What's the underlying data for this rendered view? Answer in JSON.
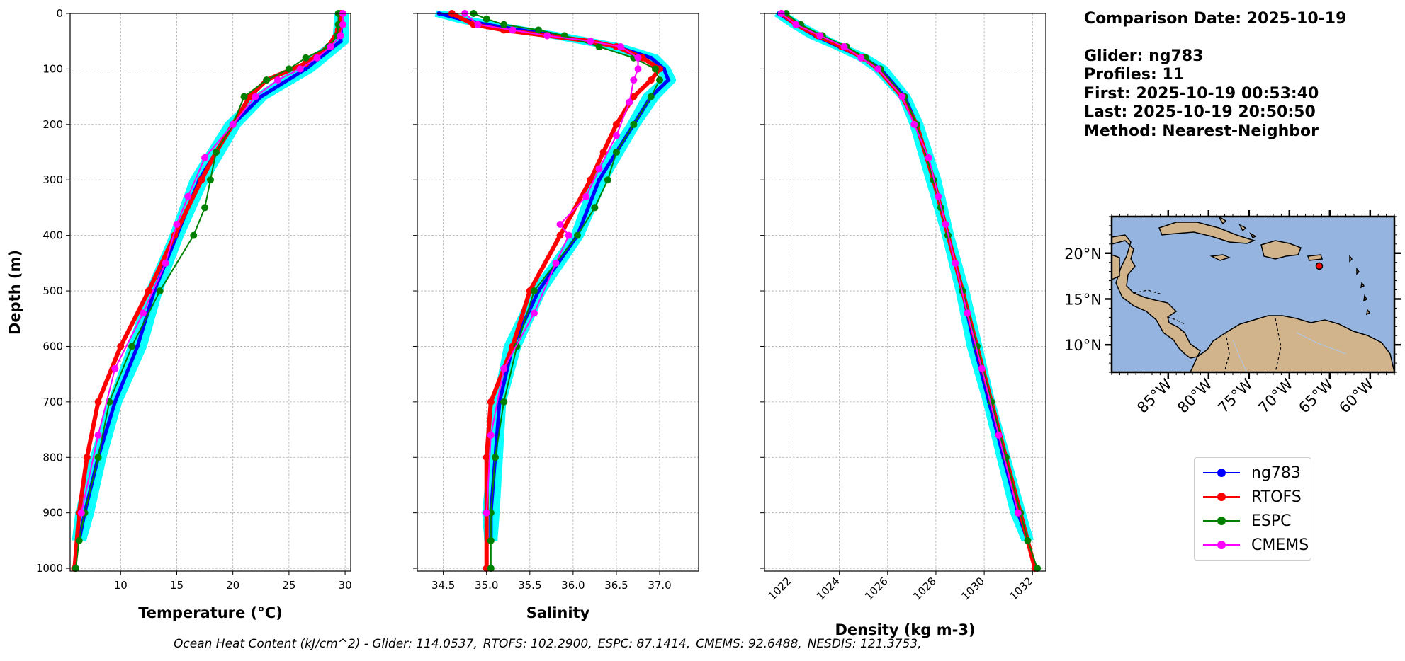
{
  "info": {
    "comparison_date": "Comparison Date: 2025-10-19",
    "glider": "Glider: ng783",
    "profiles": "Profiles: 11",
    "first": "First: 2025-10-19 00:53:40",
    "last": "Last: 2025-10-19 20:50:50",
    "method": "Method: Nearest-Neighbor"
  },
  "footer": {
    "prefix": "Ocean Heat Content (kJ/cm^2) - ",
    "items": [
      "Glider: 114.0537,",
      "RTOFS: 102.2900,",
      "ESPC: 87.1414,",
      "CMEMS: 92.6488,",
      "NESDIS: 121.3753,"
    ]
  },
  "colors": {
    "ng783": "#0000ff",
    "RTOFS": "#ff0000",
    "ESPC": "#008000",
    "CMEMS": "#ff00ff",
    "raw": "#00ffff",
    "land": "#d2b48c",
    "ocean": "#95b5e0"
  },
  "legend": [
    {
      "name": "ng783",
      "color": "#0000ff"
    },
    {
      "name": "RTOFS",
      "color": "#ff0000"
    },
    {
      "name": "ESPC",
      "color": "#008000"
    },
    {
      "name": "CMEMS",
      "color": "#ff00ff"
    }
  ],
  "chart_data": [
    {
      "type": "line",
      "xlabel": "Temperature (°C)",
      "ylabel": "Depth (m)",
      "xlim": [
        5.5,
        30.5
      ],
      "ylim": [
        1005,
        0
      ],
      "xticks": [
        10,
        15,
        20,
        25,
        30
      ],
      "yticks": [
        0,
        100,
        200,
        300,
        400,
        500,
        600,
        700,
        800,
        900,
        1000
      ],
      "grid": true,
      "series": [
        {
          "name": "ng783",
          "depth": [
            0,
            50,
            100,
            150,
            200,
            300,
            400,
            500,
            600,
            700,
            800,
            900,
            950
          ],
          "values": [
            29.7,
            29.6,
            26.5,
            22.5,
            20.0,
            17.0,
            15.0,
            13.0,
            11.5,
            9.5,
            8.0,
            6.8,
            6.3
          ]
        },
        {
          "name": "RTOFS",
          "depth": [
            0,
            30,
            60,
            90,
            120,
            150,
            200,
            250,
            300,
            400,
            500,
            600,
            700,
            800,
            900,
            1000
          ],
          "values": [
            29.6,
            29.4,
            28.5,
            26.5,
            23.0,
            21.5,
            20.0,
            18.5,
            17.2,
            14.8,
            12.5,
            10.0,
            8.0,
            7.0,
            6.3,
            5.9
          ]
        },
        {
          "name": "ESPC",
          "depth": [
            0,
            20,
            40,
            60,
            80,
            100,
            120,
            150,
            200,
            250,
            300,
            350,
            400,
            500,
            600,
            700,
            800,
            900,
            950,
            1000
          ],
          "values": [
            29.4,
            29.4,
            29.3,
            28.5,
            26.5,
            25.0,
            23.0,
            21.0,
            20.0,
            18.5,
            18.0,
            17.5,
            16.5,
            13.5,
            11.0,
            9.0,
            8.0,
            6.8,
            6.3,
            6.0
          ]
        },
        {
          "name": "CMEMS",
          "depth": [
            0,
            20,
            40,
            60,
            80,
            100,
            120,
            150,
            200,
            260,
            330,
            380,
            450,
            540,
            640,
            760,
            900
          ],
          "values": [
            29.8,
            29.8,
            29.6,
            28.7,
            27.5,
            26.0,
            24.0,
            22.0,
            20.0,
            17.5,
            16.0,
            15.0,
            14.0,
            12.0,
            9.5,
            8.0,
            6.5
          ]
        }
      ]
    },
    {
      "type": "line",
      "xlabel": "Salinity",
      "xlim": [
        34.2,
        37.45
      ],
      "ylim": [
        1005,
        0
      ],
      "xticks": [
        34.5,
        35.0,
        35.5,
        36.0,
        36.5,
        37.0
      ],
      "xticklabels": [
        "34.5",
        "35.0",
        "35.5",
        "36.0",
        "36.5",
        "37.0"
      ],
      "grid": true,
      "series": [
        {
          "name": "ng783",
          "depth": [
            0,
            10,
            20,
            40,
            60,
            80,
            100,
            120,
            150,
            200,
            250,
            300,
            400,
            500,
            600,
            700,
            800,
            900,
            950
          ],
          "values": [
            34.45,
            34.7,
            35.0,
            35.8,
            36.5,
            36.9,
            37.05,
            37.1,
            36.9,
            36.7,
            36.5,
            36.3,
            36.05,
            35.6,
            35.3,
            35.15,
            35.1,
            35.05,
            35.05
          ]
        },
        {
          "name": "RTOFS",
          "depth": [
            0,
            20,
            30,
            40,
            50,
            60,
            80,
            100,
            120,
            150,
            200,
            250,
            300,
            400,
            500,
            600,
            700,
            800,
            900,
            1000
          ],
          "values": [
            34.6,
            34.85,
            35.2,
            35.7,
            36.2,
            36.5,
            36.8,
            37.0,
            36.9,
            36.7,
            36.5,
            36.35,
            36.2,
            35.85,
            35.5,
            35.3,
            35.05,
            35.0,
            35.0,
            35.0
          ]
        },
        {
          "name": "ESPC",
          "depth": [
            0,
            10,
            20,
            30,
            40,
            60,
            80,
            100,
            120,
            150,
            200,
            250,
            300,
            350,
            400,
            500,
            600,
            700,
            800,
            900,
            950,
            1000
          ],
          "values": [
            34.85,
            35.0,
            35.2,
            35.6,
            35.9,
            36.3,
            36.7,
            36.95,
            37.0,
            36.9,
            36.7,
            36.5,
            36.4,
            36.25,
            36.05,
            35.55,
            35.35,
            35.2,
            35.1,
            35.05,
            35.05,
            35.05
          ]
        },
        {
          "name": "CMEMS",
          "depth": [
            0,
            20,
            30,
            40,
            50,
            60,
            80,
            100,
            120,
            160,
            220,
            280,
            330,
            380,
            400,
            450,
            540,
            640,
            760,
            900
          ],
          "values": [
            34.75,
            34.9,
            35.3,
            35.7,
            36.2,
            36.55,
            36.75,
            36.75,
            36.7,
            36.65,
            36.5,
            36.3,
            36.15,
            35.85,
            35.95,
            35.8,
            35.55,
            35.2,
            35.05,
            35.0
          ]
        }
      ]
    },
    {
      "type": "line",
      "xlabel": "Density (kg m-3)",
      "xlim": [
        1020.9,
        1032.55
      ],
      "ylim": [
        1005,
        0
      ],
      "xticks": [
        1022,
        1024,
        1026,
        1028,
        1030,
        1032
      ],
      "grid": true,
      "series": [
        {
          "name": "ng783",
          "depth": [
            0,
            20,
            40,
            60,
            80,
            100,
            150,
            200,
            300,
            400,
            500,
            600,
            700,
            800,
            900,
            950
          ],
          "values": [
            1021.5,
            1022.2,
            1023.0,
            1024.0,
            1025.0,
            1025.7,
            1026.7,
            1027.2,
            1027.9,
            1028.5,
            1029.1,
            1029.6,
            1030.2,
            1030.8,
            1031.4,
            1031.8
          ]
        },
        {
          "name": "RTOFS",
          "depth": [
            0,
            20,
            40,
            60,
            80,
            100,
            150,
            200,
            300,
            400,
            500,
            600,
            700,
            800,
            900,
            1000
          ],
          "values": [
            1021.6,
            1022.2,
            1023.1,
            1024.1,
            1025.0,
            1025.6,
            1026.6,
            1027.2,
            1027.9,
            1028.5,
            1029.1,
            1029.7,
            1030.3,
            1030.9,
            1031.5,
            1032.1
          ]
        },
        {
          "name": "ESPC",
          "depth": [
            0,
            20,
            40,
            60,
            80,
            100,
            150,
            200,
            300,
            350,
            400,
            500,
            600,
            700,
            800,
            900,
            950,
            1000
          ],
          "values": [
            1021.8,
            1022.4,
            1023.3,
            1024.3,
            1025.1,
            1025.7,
            1026.7,
            1027.2,
            1027.9,
            1028.2,
            1028.5,
            1029.1,
            1029.7,
            1030.3,
            1030.9,
            1031.5,
            1031.8,
            1032.2
          ]
        },
        {
          "name": "CMEMS",
          "depth": [
            0,
            20,
            40,
            60,
            80,
            100,
            150,
            200,
            260,
            330,
            380,
            450,
            540,
            640,
            760,
            900
          ],
          "values": [
            1021.6,
            1022.2,
            1023.2,
            1024.2,
            1024.9,
            1025.6,
            1026.6,
            1027.1,
            1027.7,
            1028.1,
            1028.4,
            1028.8,
            1029.3,
            1029.9,
            1030.6,
            1031.4
          ]
        }
      ]
    }
  ],
  "map": {
    "lon_range": [
      -92,
      -57
    ],
    "lat_range": [
      7,
      24
    ],
    "lon_ticks": [
      -85,
      -80,
      -75,
      -70,
      -65,
      -60
    ],
    "lon_labels": [
      "85°W",
      "80°W",
      "75°W",
      "70°W",
      "65°W",
      "60°W"
    ],
    "lat_ticks": [
      20,
      15,
      10
    ],
    "lat_labels": [
      "20°N",
      "15°N",
      "10°N"
    ],
    "glider_position": {
      "lon": -66.3,
      "lat": 18.6
    }
  }
}
